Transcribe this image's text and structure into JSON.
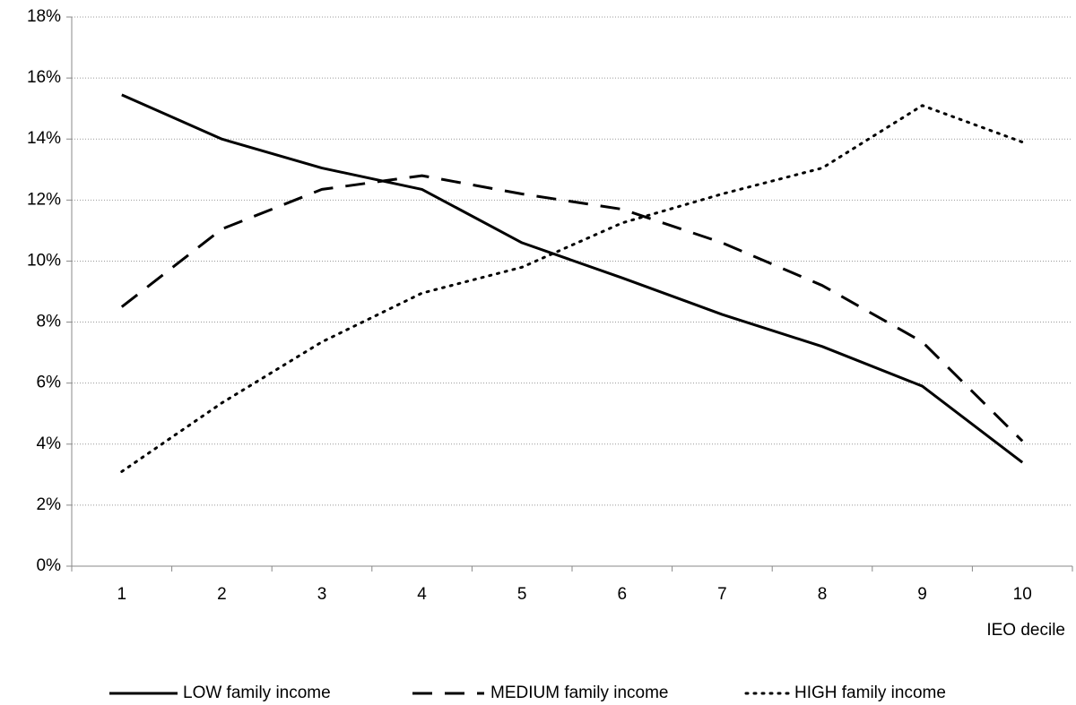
{
  "chart_data": {
    "type": "line",
    "x_label": "IEO decile",
    "categories": [
      "1",
      "2",
      "3",
      "4",
      "5",
      "6",
      "7",
      "8",
      "9",
      "10"
    ],
    "series": [
      {
        "name": "LOW family income",
        "color": "#000000",
        "style": "solid",
        "values": [
          15.45,
          14.0,
          13.05,
          12.35,
          10.6,
          9.45,
          8.25,
          7.2,
          5.9,
          3.4
        ]
      },
      {
        "name": "MEDIUM family income",
        "color": "#000000",
        "style": "dashed",
        "values": [
          8.5,
          11.05,
          12.35,
          12.8,
          12.2,
          11.7,
          10.6,
          9.2,
          7.35,
          4.1
        ]
      },
      {
        "name": "HIGH family income",
        "color": "#000000",
        "style": "dotted",
        "values": [
          3.1,
          5.35,
          7.35,
          8.95,
          9.8,
          11.25,
          12.2,
          13.05,
          15.1,
          13.9
        ]
      }
    ],
    "ylim": [
      0,
      18
    ],
    "yticks": [
      {
        "value": 0,
        "label": "0%"
      },
      {
        "value": 2,
        "label": "2%"
      },
      {
        "value": 4,
        "label": "4%"
      },
      {
        "value": 6,
        "label": "6%"
      },
      {
        "value": 8,
        "label": "8%"
      },
      {
        "value": 10,
        "label": "10%"
      },
      {
        "value": 12,
        "label": "12%"
      },
      {
        "value": 14,
        "label": "14%"
      },
      {
        "value": 16,
        "label": "16%"
      },
      {
        "value": 18,
        "label": "18%"
      }
    ],
    "grid": true,
    "legend": "bottom"
  }
}
